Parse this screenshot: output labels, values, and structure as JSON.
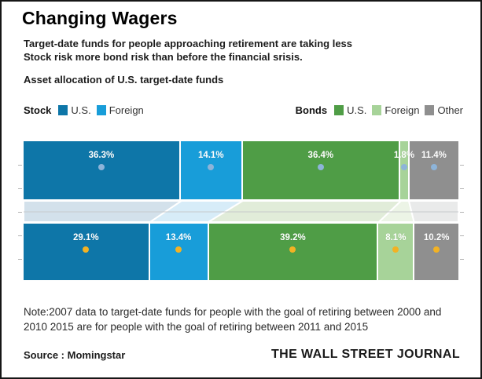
{
  "header": {
    "title": "Changing Wagers",
    "subtitle_line1": "Target-date funds for people approaching retirement are taking less",
    "subtitle_line2": "Stock risk more bond risk than before the financial srisis.",
    "section_label": "Asset allocation of U.S. target-date funds"
  },
  "legend": {
    "stock": {
      "label": "Stock",
      "items": [
        {
          "label": "U.S.",
          "color": "#0e76a8"
        },
        {
          "label": "Foreign",
          "color": "#189dd9"
        }
      ]
    },
    "bonds": {
      "label": "Bonds",
      "items": [
        {
          "label": "U.S.",
          "color": "#4f9d46"
        },
        {
          "label": "Foreign",
          "color": "#a7d399"
        },
        {
          "label": "Other",
          "color": "#8f8f8f"
        }
      ]
    }
  },
  "chart_data": {
    "type": "stacked-bar-flow",
    "categories": [
      "Stock U.S.",
      "Stock Foreign",
      "Bonds U.S.",
      "Bonds Foreign",
      "Other"
    ],
    "colors": [
      "#0e76a8",
      "#189dd9",
      "#4f9d46",
      "#a7d399",
      "#8f8f8f"
    ],
    "tint_colors": [
      "#d3e1eb",
      "#d7ecf8",
      "#e1ecd9",
      "#ecf4e6",
      "#e9eaea"
    ],
    "gridline_color": "#c7cacc",
    "series": [
      {
        "name": "top-bar-2007",
        "marker_color": "#8db4d9",
        "values": [
          36.3,
          14.1,
          36.4,
          1.8,
          11.4
        ],
        "labels": [
          "36.3%",
          "14.1%",
          "36.4%",
          "1.8%",
          "11.4%"
        ]
      },
      {
        "name": "bottom-bar-2015",
        "marker_color": "#f2b224",
        "values": [
          29.1,
          13.4,
          39.2,
          8.1,
          10.2
        ],
        "labels": [
          "29.1%",
          "13.4%",
          "39.2%",
          "8.1%",
          "10.2%"
        ]
      }
    ],
    "legend_position": "top",
    "value_labels": "inside-top-white-bold"
  },
  "note": {
    "line1": "Note:2007 data to target-date funds for people with the goal of retiring between 2000 and",
    "line2": "2010 2015 are for people with the goal of retiring between 2011 and 2015"
  },
  "footer": {
    "source": "Source : Momingstar",
    "brand": "THE WALL STREET JOURNAL"
  }
}
